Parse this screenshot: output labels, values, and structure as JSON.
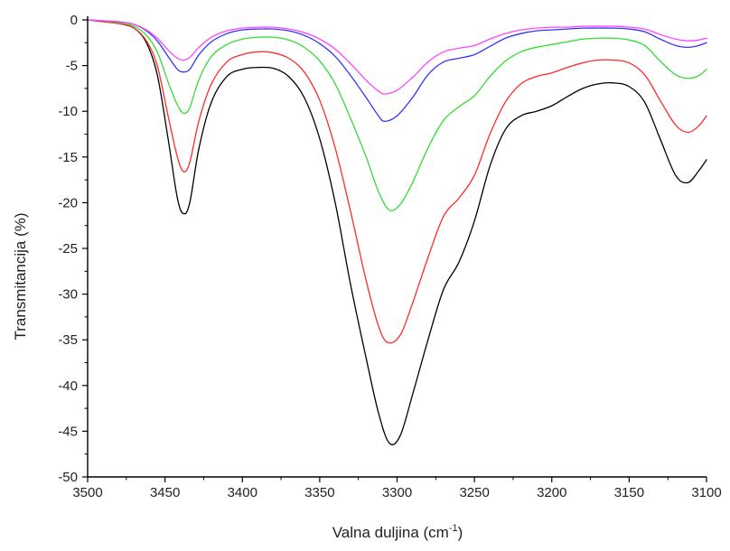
{
  "chart_data": {
    "type": "line",
    "title": "",
    "xlabel": "Valna duljina (cm",
    "xlabel_superscript": "-1",
    "xlabel_suffix": ")",
    "ylabel": "Transmitancija (%)",
    "xlim": [
      3500,
      3100
    ],
    "ylim": [
      -50,
      0
    ],
    "x_ticks": [
      3500,
      3450,
      3400,
      3350,
      3300,
      3250,
      3200,
      3150,
      3100
    ],
    "x_tick_labels": [
      "3500",
      "3450",
      "3400",
      "3350",
      "3300",
      "3250",
      "3200",
      "3150",
      "3100"
    ],
    "y_ticks": [
      0,
      -5,
      -10,
      -15,
      -20,
      -25,
      -30,
      -35,
      -40,
      -45,
      -50
    ],
    "y_tick_labels": [
      "0",
      "-5",
      "-10",
      "-15",
      "-20",
      "-25",
      "-30",
      "-35",
      "-40",
      "-45",
      "-50"
    ],
    "grid": false,
    "legend": "none",
    "series": [
      {
        "color": "#000000",
        "points": [
          [
            3500,
            0
          ],
          [
            3490,
            -0.2
          ],
          [
            3480,
            -0.4
          ],
          [
            3470,
            -0.9
          ],
          [
            3462,
            -2.5
          ],
          [
            3455,
            -6
          ],
          [
            3448,
            -13
          ],
          [
            3442,
            -19.5
          ],
          [
            3438,
            -21.2
          ],
          [
            3434,
            -20
          ],
          [
            3428,
            -14
          ],
          [
            3420,
            -9
          ],
          [
            3410,
            -6.2
          ],
          [
            3400,
            -5.4
          ],
          [
            3390,
            -5.2
          ],
          [
            3380,
            -5.3
          ],
          [
            3370,
            -6.2
          ],
          [
            3360,
            -8.5
          ],
          [
            3350,
            -13
          ],
          [
            3340,
            -20
          ],
          [
            3330,
            -29
          ],
          [
            3320,
            -37
          ],
          [
            3312,
            -43
          ],
          [
            3305,
            -46.3
          ],
          [
            3298,
            -45.5
          ],
          [
            3290,
            -41
          ],
          [
            3280,
            -35
          ],
          [
            3270,
            -29.5
          ],
          [
            3260,
            -26.5
          ],
          [
            3250,
            -22
          ],
          [
            3240,
            -16
          ],
          [
            3230,
            -12
          ],
          [
            3220,
            -10.5
          ],
          [
            3210,
            -10
          ],
          [
            3200,
            -9.4
          ],
          [
            3190,
            -8.4
          ],
          [
            3180,
            -7.5
          ],
          [
            3170,
            -7
          ],
          [
            3160,
            -6.9
          ],
          [
            3150,
            -7.3
          ],
          [
            3140,
            -9
          ],
          [
            3130,
            -13
          ],
          [
            3120,
            -17
          ],
          [
            3112,
            -17.8
          ],
          [
            3105,
            -16.5
          ],
          [
            3100,
            -15.3
          ]
        ]
      },
      {
        "color": "#ff2a2a",
        "points": [
          [
            3500,
            0
          ],
          [
            3490,
            -0.2
          ],
          [
            3480,
            -0.4
          ],
          [
            3470,
            -0.9
          ],
          [
            3462,
            -2.3
          ],
          [
            3455,
            -5
          ],
          [
            3448,
            -10.5
          ],
          [
            3442,
            -15
          ],
          [
            3438,
            -16.6
          ],
          [
            3434,
            -15.6
          ],
          [
            3428,
            -11
          ],
          [
            3420,
            -7
          ],
          [
            3410,
            -4.6
          ],
          [
            3400,
            -3.8
          ],
          [
            3390,
            -3.5
          ],
          [
            3380,
            -3.6
          ],
          [
            3370,
            -4.2
          ],
          [
            3360,
            -5.7
          ],
          [
            3350,
            -8.8
          ],
          [
            3340,
            -14
          ],
          [
            3330,
            -21
          ],
          [
            3320,
            -28.5
          ],
          [
            3312,
            -33.5
          ],
          [
            3306,
            -35.3
          ],
          [
            3298,
            -34.5
          ],
          [
            3290,
            -31
          ],
          [
            3280,
            -26
          ],
          [
            3270,
            -21.5
          ],
          [
            3260,
            -19.5
          ],
          [
            3250,
            -17
          ],
          [
            3240,
            -12.5
          ],
          [
            3230,
            -9
          ],
          [
            3220,
            -7
          ],
          [
            3210,
            -6.2
          ],
          [
            3200,
            -5.8
          ],
          [
            3190,
            -5.2
          ],
          [
            3180,
            -4.7
          ],
          [
            3170,
            -4.4
          ],
          [
            3160,
            -4.4
          ],
          [
            3150,
            -4.7
          ],
          [
            3140,
            -6
          ],
          [
            3130,
            -8.8
          ],
          [
            3120,
            -11.5
          ],
          [
            3112,
            -12.3
          ],
          [
            3105,
            -11.6
          ],
          [
            3100,
            -10.5
          ]
        ]
      },
      {
        "color": "#33dd33",
        "points": [
          [
            3500,
            0
          ],
          [
            3490,
            -0.1
          ],
          [
            3480,
            -0.3
          ],
          [
            3470,
            -0.7
          ],
          [
            3462,
            -1.7
          ],
          [
            3455,
            -3.5
          ],
          [
            3448,
            -6.8
          ],
          [
            3442,
            -9.3
          ],
          [
            3438,
            -10.2
          ],
          [
            3434,
            -9.6
          ],
          [
            3428,
            -6.5
          ],
          [
            3420,
            -4
          ],
          [
            3410,
            -2.7
          ],
          [
            3400,
            -2.1
          ],
          [
            3390,
            -1.9
          ],
          [
            3380,
            -1.9
          ],
          [
            3370,
            -2.2
          ],
          [
            3360,
            -3
          ],
          [
            3350,
            -4.5
          ],
          [
            3340,
            -7
          ],
          [
            3330,
            -10.8
          ],
          [
            3320,
            -15
          ],
          [
            3312,
            -18.8
          ],
          [
            3305,
            -20.8
          ],
          [
            3298,
            -20.2
          ],
          [
            3290,
            -17.8
          ],
          [
            3280,
            -14
          ],
          [
            3270,
            -11
          ],
          [
            3260,
            -9.5
          ],
          [
            3250,
            -8.3
          ],
          [
            3240,
            -6.2
          ],
          [
            3230,
            -4.5
          ],
          [
            3220,
            -3.5
          ],
          [
            3210,
            -3
          ],
          [
            3200,
            -2.7
          ],
          [
            3190,
            -2.4
          ],
          [
            3180,
            -2.1
          ],
          [
            3170,
            -2
          ],
          [
            3160,
            -2
          ],
          [
            3150,
            -2.2
          ],
          [
            3140,
            -2.8
          ],
          [
            3130,
            -4.5
          ],
          [
            3120,
            -6
          ],
          [
            3112,
            -6.4
          ],
          [
            3105,
            -6.1
          ],
          [
            3100,
            -5.4
          ]
        ]
      },
      {
        "color": "#3333ff",
        "points": [
          [
            3500,
            0
          ],
          [
            3490,
            -0.1
          ],
          [
            3480,
            -0.2
          ],
          [
            3470,
            -0.5
          ],
          [
            3462,
            -1.2
          ],
          [
            3455,
            -2.3
          ],
          [
            3448,
            -4
          ],
          [
            3442,
            -5.4
          ],
          [
            3438,
            -5.7
          ],
          [
            3434,
            -5.4
          ],
          [
            3428,
            -3.8
          ],
          [
            3420,
            -2.4
          ],
          [
            3410,
            -1.5
          ],
          [
            3400,
            -1.1
          ],
          [
            3390,
            -1
          ],
          [
            3380,
            -1
          ],
          [
            3370,
            -1.2
          ],
          [
            3360,
            -1.7
          ],
          [
            3350,
            -2.6
          ],
          [
            3340,
            -4
          ],
          [
            3330,
            -6.1
          ],
          [
            3320,
            -8.5
          ],
          [
            3312,
            -10.5
          ],
          [
            3308,
            -11.1
          ],
          [
            3300,
            -10.5
          ],
          [
            3290,
            -8.5
          ],
          [
            3280,
            -6
          ],
          [
            3270,
            -4.6
          ],
          [
            3260,
            -4.2
          ],
          [
            3250,
            -3.8
          ],
          [
            3240,
            -2.9
          ],
          [
            3230,
            -2
          ],
          [
            3220,
            -1.5
          ],
          [
            3210,
            -1.2
          ],
          [
            3200,
            -1.1
          ],
          [
            3190,
            -1
          ],
          [
            3180,
            -0.9
          ],
          [
            3170,
            -0.9
          ],
          [
            3160,
            -0.9
          ],
          [
            3150,
            -1
          ],
          [
            3140,
            -1.3
          ],
          [
            3130,
            -2.1
          ],
          [
            3120,
            -2.8
          ],
          [
            3112,
            -3
          ],
          [
            3105,
            -2.8
          ],
          [
            3100,
            -2.5
          ]
        ]
      },
      {
        "color": "#ff44ff",
        "points": [
          [
            3500,
            0
          ],
          [
            3490,
            -0.1
          ],
          [
            3480,
            -0.2
          ],
          [
            3470,
            -0.5
          ],
          [
            3462,
            -1.1
          ],
          [
            3455,
            -2
          ],
          [
            3448,
            -3.3
          ],
          [
            3442,
            -4.2
          ],
          [
            3438,
            -4.4
          ],
          [
            3434,
            -4.1
          ],
          [
            3428,
            -3
          ],
          [
            3420,
            -1.9
          ],
          [
            3410,
            -1.2
          ],
          [
            3400,
            -0.9
          ],
          [
            3390,
            -0.8
          ],
          [
            3380,
            -0.8
          ],
          [
            3370,
            -1
          ],
          [
            3360,
            -1.4
          ],
          [
            3350,
            -2.1
          ],
          [
            3340,
            -3.2
          ],
          [
            3330,
            -4.8
          ],
          [
            3320,
            -6.6
          ],
          [
            3312,
            -7.8
          ],
          [
            3308,
            -8.1
          ],
          [
            3300,
            -7.7
          ],
          [
            3290,
            -6.3
          ],
          [
            3280,
            -4.6
          ],
          [
            3270,
            -3.5
          ],
          [
            3260,
            -3.1
          ],
          [
            3250,
            -2.8
          ],
          [
            3240,
            -2.1
          ],
          [
            3230,
            -1.5
          ],
          [
            3220,
            -1.1
          ],
          [
            3210,
            -0.9
          ],
          [
            3200,
            -0.8
          ],
          [
            3190,
            -0.8
          ],
          [
            3180,
            -0.7
          ],
          [
            3170,
            -0.7
          ],
          [
            3160,
            -0.7
          ],
          [
            3150,
            -0.8
          ],
          [
            3140,
            -1
          ],
          [
            3130,
            -1.6
          ],
          [
            3120,
            -2.1
          ],
          [
            3112,
            -2.3
          ],
          [
            3105,
            -2.2
          ],
          [
            3100,
            -2
          ]
        ]
      }
    ]
  }
}
